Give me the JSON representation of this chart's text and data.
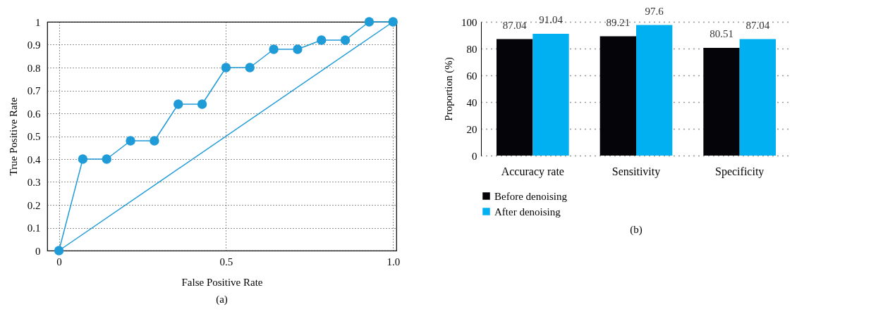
{
  "chart_data": [
    {
      "type": "line",
      "xlabel": "False Positive Rate",
      "ylabel": "True Positive Rate",
      "annotations": [
        "(a)"
      ],
      "xlim": [
        -0.035,
        1.01
      ],
      "xticks": [
        0,
        0.5,
        {
          "value": 1,
          "label": "1.0"
        }
      ],
      "ylim": [
        0,
        1
      ],
      "yticks": [
        0,
        0.1,
        0.2,
        0.3,
        0.4,
        0.5,
        0.6,
        0.7,
        0.8,
        0.9,
        1
      ],
      "grid": true,
      "series": [
        {
          "color": "#1f9bd7",
          "marker": "circle",
          "x": [
            0,
            0.0714,
            0.1429,
            0.2143,
            0.2857,
            0.3571,
            0.4286,
            0.5,
            0.5714,
            0.6429,
            0.7143,
            0.7857,
            0.8571,
            0.9286,
            1
          ],
          "values": [
            0,
            0.4,
            0.4,
            0.48,
            0.48,
            0.64,
            0.64,
            0.8,
            0.8,
            0.88,
            0.88,
            0.92,
            0.92,
            1,
            1
          ]
        },
        {
          "color": "#1f9bd7",
          "marker": "none",
          "x": [
            0,
            1
          ],
          "values": [
            0,
            1
          ]
        }
      ]
    },
    {
      "type": "bar",
      "ylabel": "Proportion (%)",
      "annotations": [
        "(b)"
      ],
      "categories": [
        "Accuracy rate",
        "Sensitivity",
        "Specificity"
      ],
      "ylim": [
        0,
        100
      ],
      "yticks": [
        0,
        20,
        40,
        60,
        80,
        100
      ],
      "grid": "y",
      "legend": "bottom left",
      "data_labels": true,
      "series": [
        {
          "name": "Before denoising",
          "color": "#050509",
          "values": [
            87.04,
            89.21,
            80.51
          ]
        },
        {
          "name": "After denoising",
          "color": "#00b0f0",
          "values": [
            91.04,
            97.6,
            87.04
          ]
        }
      ]
    }
  ]
}
